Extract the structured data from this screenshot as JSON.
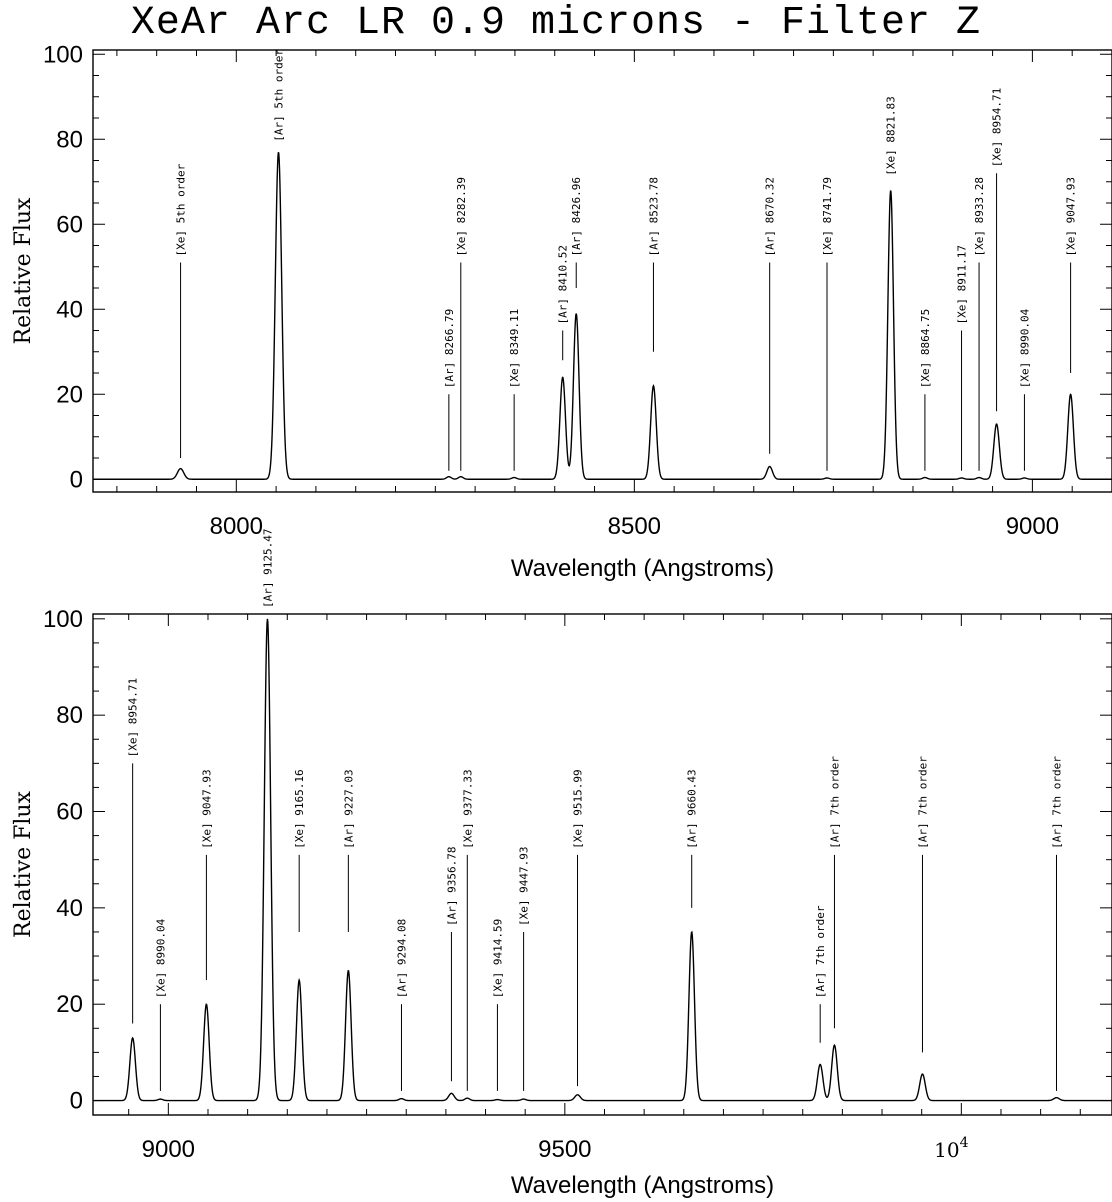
{
  "title": "XeAr Arc LR 0.9 microns - Filter Z",
  "chart_data": [
    {
      "type": "line",
      "title": "XeAr Arc LR 0.9 microns - Filter Z",
      "xlabel": "Wavelength (Angstroms)",
      "ylabel": "Relative Flux",
      "xlim": [
        7820,
        9100
      ],
      "ylim": [
        -3,
        101
      ],
      "xticks": [
        8000,
        8500,
        9000
      ],
      "xtick_labels": [
        "8000",
        "8500",
        "9000"
      ],
      "yticks": [
        0,
        20,
        40,
        60,
        80,
        100
      ],
      "ytick_labels": [
        "0",
        "20",
        "40",
        "60",
        "80",
        "100"
      ],
      "grid": false,
      "baseline": 0,
      "peaks": [
        {
          "x": 7930,
          "y": 2.5,
          "w": 4
        },
        {
          "x": 8053,
          "y": 77,
          "w": 4
        },
        {
          "x": 8267,
          "y": 0.6,
          "w": 3
        },
        {
          "x": 8282,
          "y": 0.6,
          "w": 3
        },
        {
          "x": 8349,
          "y": 0.4,
          "w": 3
        },
        {
          "x": 8410,
          "y": 24,
          "w": 3.5
        },
        {
          "x": 8427,
          "y": 39,
          "w": 3.5
        },
        {
          "x": 8524,
          "y": 22,
          "w": 3.5
        },
        {
          "x": 8670,
          "y": 3,
          "w": 3.5
        },
        {
          "x": 8742,
          "y": 0.3,
          "w": 3
        },
        {
          "x": 8822,
          "y": 68,
          "w": 3.5
        },
        {
          "x": 8865,
          "y": 0.4,
          "w": 3
        },
        {
          "x": 8911,
          "y": 0.3,
          "w": 3
        },
        {
          "x": 8933,
          "y": 0.4,
          "w": 3
        },
        {
          "x": 8955,
          "y": 13,
          "w": 3.5
        },
        {
          "x": 8990,
          "y": 0.3,
          "w": 3
        },
        {
          "x": 9048,
          "y": 20,
          "w": 3.5
        }
      ],
      "annotations": [
        {
          "text": "[Xe] 5th order",
          "x": 7930,
          "line_bottom": 5,
          "line_top": 51
        },
        {
          "text": "[Ar] 5th order",
          "x": 8053,
          "line_bottom": 78,
          "line_top": 78
        },
        {
          "text": "[Ar] 8266.79",
          "x": 8267,
          "line_bottom": 2,
          "line_top": 20
        },
        {
          "text": "[Xe] 8282.39",
          "x": 8282,
          "line_bottom": 2,
          "line_top": 51
        },
        {
          "text": "[Xe] 8349.11",
          "x": 8349,
          "line_bottom": 2,
          "line_top": 20
        },
        {
          "text": "[Ar] 8410.52",
          "x": 8410,
          "line_bottom": 28,
          "line_top": 35
        },
        {
          "text": "[Ar] 8426.96",
          "x": 8427,
          "line_bottom": 45,
          "line_top": 51
        },
        {
          "text": "[Ar] 8523.78",
          "x": 8524,
          "line_bottom": 30,
          "line_top": 51
        },
        {
          "text": "[Ar] 8670.32",
          "x": 8670,
          "line_bottom": 6,
          "line_top": 51
        },
        {
          "text": "[Xe] 8741.79",
          "x": 8742,
          "line_bottom": 2,
          "line_top": 51
        },
        {
          "text": "[Xe] 8821.83",
          "x": 8822,
          "line_bottom": 70,
          "line_top": 70
        },
        {
          "text": "[Xe] 8864.75",
          "x": 8865,
          "line_bottom": 2,
          "line_top": 20
        },
        {
          "text": "[Xe] 8911.17",
          "x": 8911,
          "line_bottom": 2,
          "line_top": 35
        },
        {
          "text": "[Xe] 8933.28",
          "x": 8933,
          "line_bottom": 2,
          "line_top": 51
        },
        {
          "text": "[Xe] 8954.71",
          "x": 8955,
          "line_bottom": 16,
          "line_top": 72
        },
        {
          "text": "[Xe] 8990.04",
          "x": 8990,
          "line_bottom": 2,
          "line_top": 20
        },
        {
          "text": "[Xe] 9047.93",
          "x": 9048,
          "line_bottom": 25,
          "line_top": 51
        }
      ]
    },
    {
      "type": "line",
      "xlabel": "Wavelength (Angstroms)",
      "ylabel": "Relative Flux",
      "xlim": [
        8905,
        10190
      ],
      "ylim": [
        -3,
        101
      ],
      "xticks": [
        9000,
        9500,
        10000
      ],
      "xtick_labels": [
        "9000",
        "9500",
        "10^4"
      ],
      "yticks": [
        0,
        20,
        40,
        60,
        80,
        100
      ],
      "ytick_labels": [
        "0",
        "20",
        "40",
        "60",
        "80",
        "100"
      ],
      "grid": false,
      "baseline": 0,
      "peaks": [
        {
          "x": 8955,
          "y": 13,
          "w": 3.5
        },
        {
          "x": 8990,
          "y": 0.3,
          "w": 3
        },
        {
          "x": 9048,
          "y": 20,
          "w": 3.5
        },
        {
          "x": 9125,
          "y": 100,
          "w": 4
        },
        {
          "x": 9165,
          "y": 25,
          "w": 3.5
        },
        {
          "x": 9227,
          "y": 27,
          "w": 3.5
        },
        {
          "x": 9294,
          "y": 0.4,
          "w": 3
        },
        {
          "x": 9357,
          "y": 1.5,
          "w": 3.5
        },
        {
          "x": 9377,
          "y": 0.5,
          "w": 3
        },
        {
          "x": 9415,
          "y": 0.2,
          "w": 3
        },
        {
          "x": 9448,
          "y": 0.3,
          "w": 3
        },
        {
          "x": 9516,
          "y": 1.2,
          "w": 3.5
        },
        {
          "x": 9660,
          "y": 35,
          "w": 3.5
        },
        {
          "x": 9822,
          "y": 7.5,
          "w": 3.5
        },
        {
          "x": 9840,
          "y": 11.5,
          "w": 3.5
        },
        {
          "x": 9951,
          "y": 5.5,
          "w": 3.5
        },
        {
          "x": 10120,
          "y": 0.6,
          "w": 3.5
        }
      ],
      "annotations": [
        {
          "text": "[Xe] 8954.71",
          "x": 8955,
          "line_bottom": 16,
          "line_top": 70
        },
        {
          "text": "[Xe] 8990.04",
          "x": 8990,
          "line_bottom": 2,
          "line_top": 20
        },
        {
          "text": "[Xe] 9047.93",
          "x": 9048,
          "line_bottom": 25,
          "line_top": 51
        },
        {
          "text": "[Ar] 9125.47",
          "x": 9125,
          "line_bottom": 101,
          "line_top": 101
        },
        {
          "text": "[Xe] 9165.16",
          "x": 9165,
          "line_bottom": 35,
          "line_top": 51
        },
        {
          "text": "[Ar] 9227.03",
          "x": 9227,
          "line_bottom": 35,
          "line_top": 51
        },
        {
          "text": "[Ar] 9294.08",
          "x": 9294,
          "line_bottom": 2,
          "line_top": 20
        },
        {
          "text": "[Ar] 9356.78",
          "x": 9357,
          "line_bottom": 4,
          "line_top": 35
        },
        {
          "text": "[Xe] 9377.33",
          "x": 9377,
          "line_bottom": 2,
          "line_top": 51
        },
        {
          "text": "[Xe] 9414.59",
          "x": 9415,
          "line_bottom": 2,
          "line_top": 20
        },
        {
          "text": "[Xe] 9447.93",
          "x": 9448,
          "line_bottom": 2,
          "line_top": 35
        },
        {
          "text": "[Xe] 9515.99",
          "x": 9516,
          "line_bottom": 3,
          "line_top": 51
        },
        {
          "text": "[Ar] 9660.43",
          "x": 9660,
          "line_bottom": 40,
          "line_top": 51
        },
        {
          "text": "[Ar] 7th order",
          "x": 9822,
          "line_bottom": 12,
          "line_top": 20
        },
        {
          "text": "[Ar] 7th order",
          "x": 9840,
          "line_bottom": 15,
          "line_top": 51
        },
        {
          "text": "[Ar] 7th order",
          "x": 9951,
          "line_bottom": 10,
          "line_top": 51
        },
        {
          "text": "[Ar] 7th order",
          "x": 10120,
          "line_bottom": 2,
          "line_top": 51
        }
      ]
    }
  ]
}
